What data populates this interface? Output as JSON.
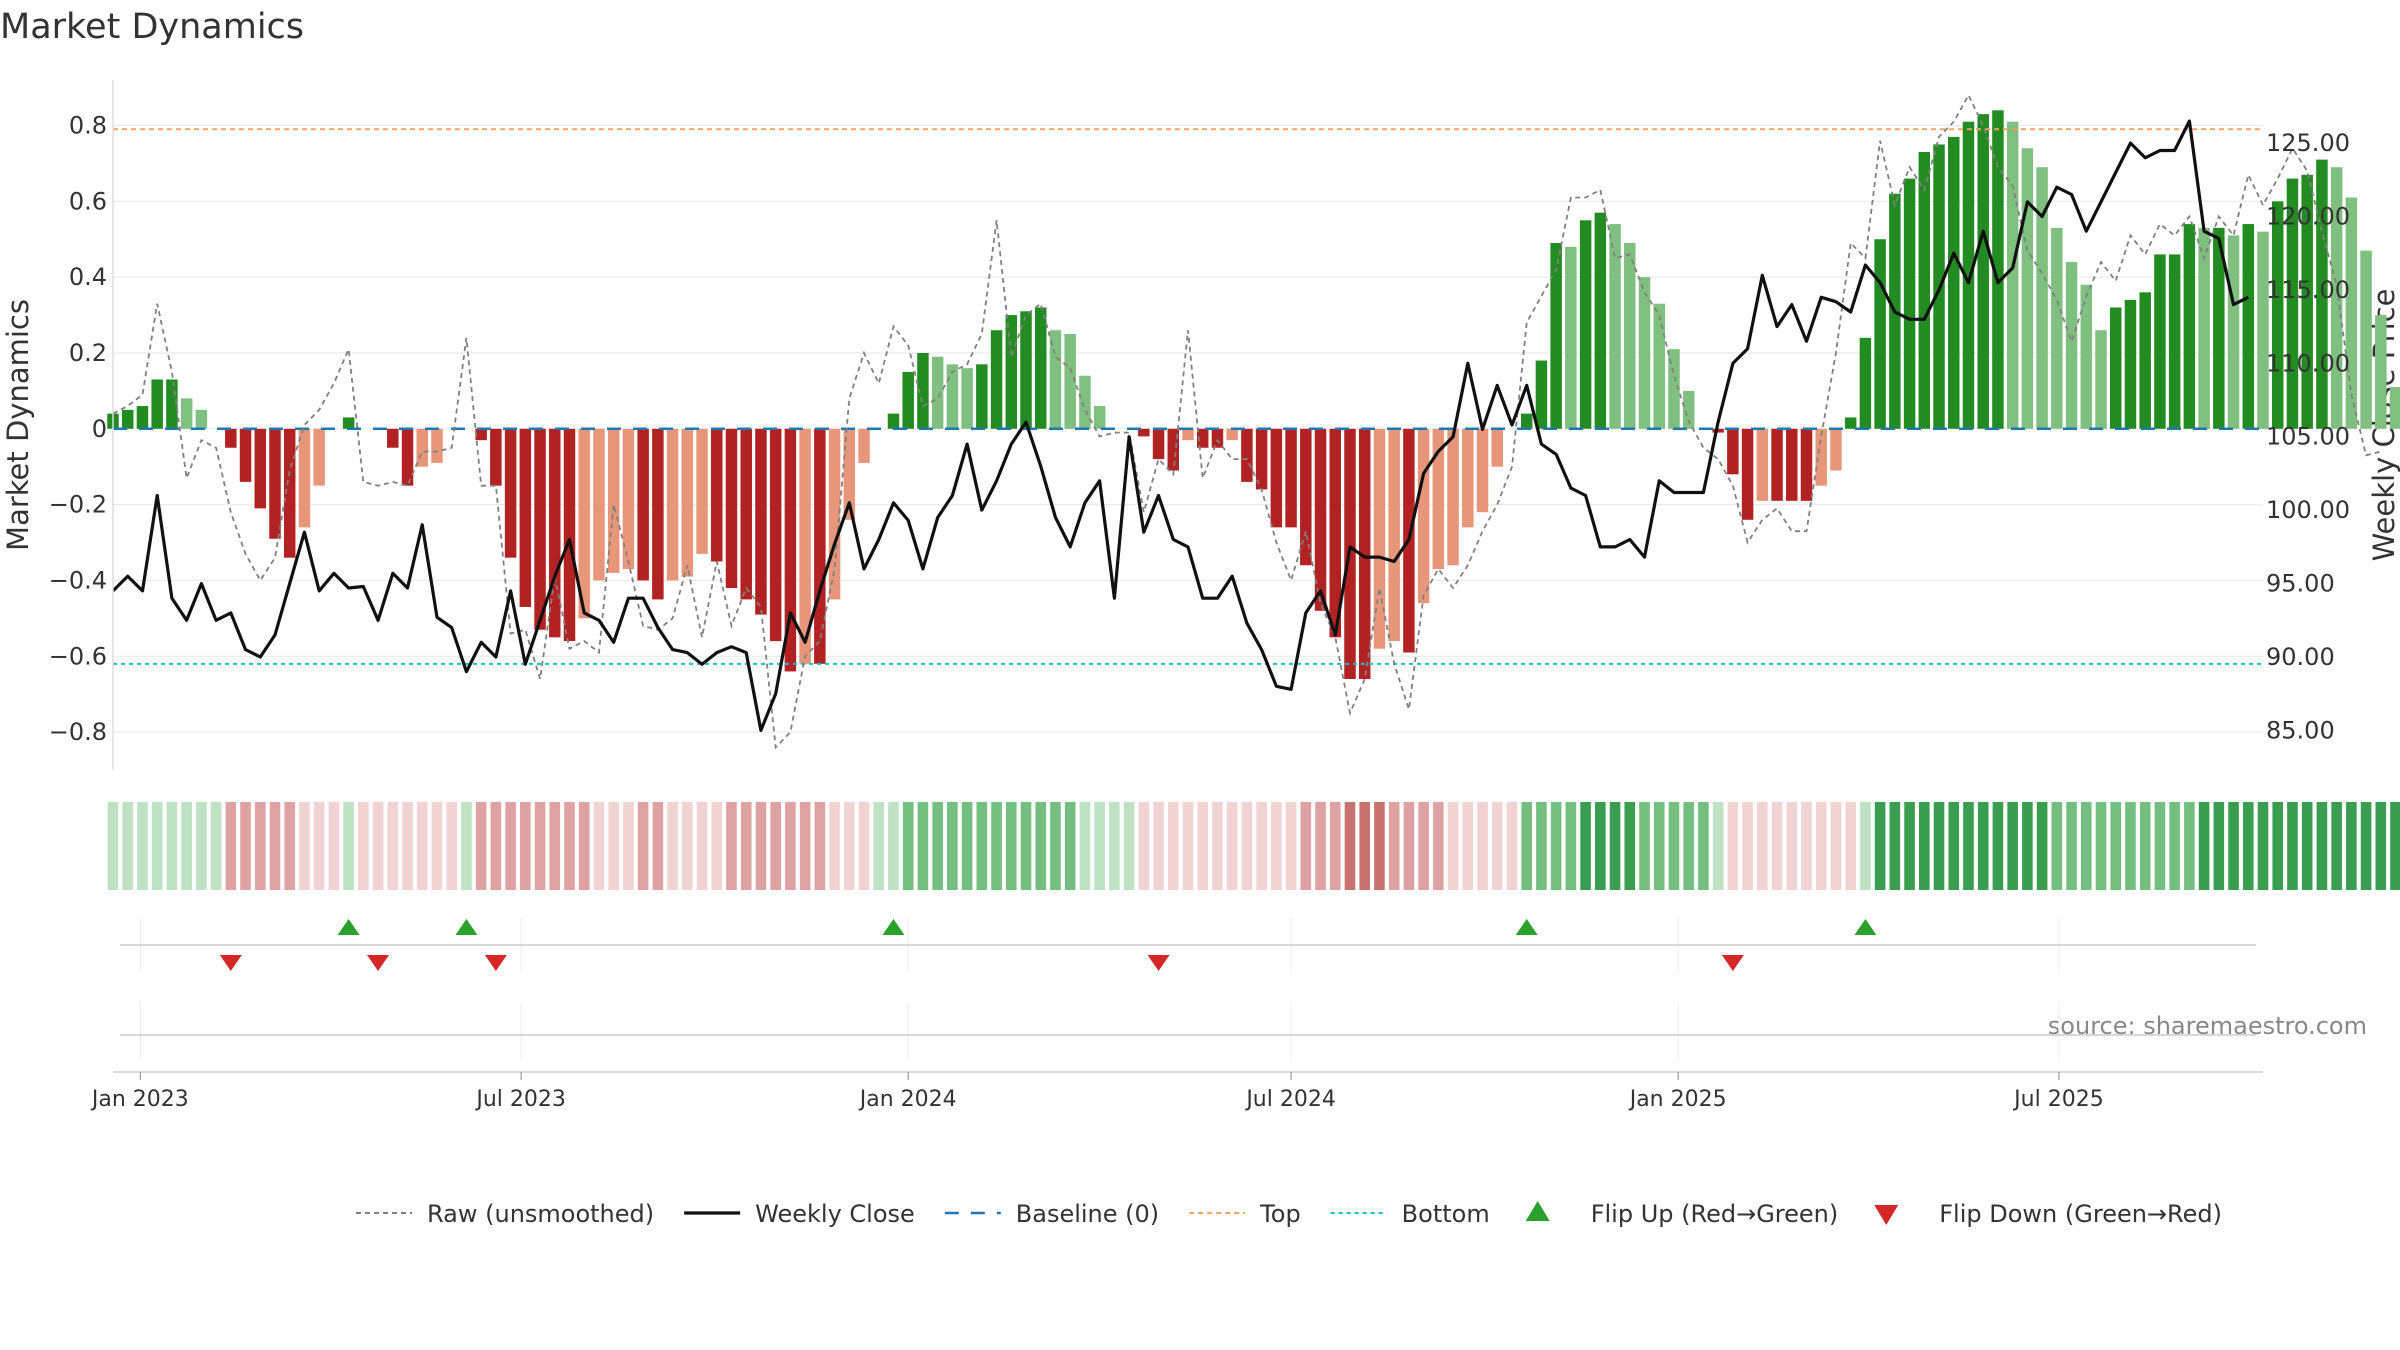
{
  "chart_data": {
    "type": "bar",
    "title": "Market Dynamics",
    "ylabel": "Market Dynamics",
    "y2label": "Weekly Close Price",
    "ylim": [
      -0.9,
      0.92
    ],
    "y2lim": [
      82.3,
      129.3
    ],
    "yticks": [
      0.8,
      0.6,
      0.4,
      0.2,
      0,
      -0.2,
      -0.4,
      -0.6,
      -0.8
    ],
    "ytick_labels": [
      "0.8",
      "0.6",
      "0.4",
      "0.2",
      "0",
      "−0.2",
      "−0.4",
      "−0.6",
      "−0.8"
    ],
    "y2ticks": [
      125,
      120,
      115,
      110,
      105,
      100,
      95,
      90,
      85
    ],
    "y2tick_labels": [
      "125.00",
      "120.00",
      "115.00",
      "110.00",
      "105.00",
      "100.00",
      "95.00",
      "90.00",
      "85.00"
    ],
    "xlim": [
      "2022-12-19",
      "2025-10-06"
    ],
    "xticks": [
      "2023-01-01",
      "2023-07-01",
      "2024-01-01",
      "2024-07-01",
      "2025-01-01",
      "2025-07-01"
    ],
    "xtick_labels": [
      "Jan 2023",
      "Jul 2023",
      "Jan 2024",
      "Jul 2024",
      "Jan 2025",
      "Jul 2025"
    ],
    "top_level": 0.79,
    "bottom_level": -0.62,
    "baseline": 0,
    "first_week": "2022-12-19",
    "bars": [
      0.04,
      0.05,
      0.06,
      0.13,
      0.13,
      0.08,
      0.05,
      0.0,
      -0.05,
      -0.14,
      -0.21,
      -0.29,
      -0.34,
      -0.26,
      -0.15,
      0.0,
      0.03,
      0.0,
      0.0,
      -0.05,
      -0.15,
      -0.1,
      -0.09,
      0.0,
      0.0,
      -0.03,
      -0.15,
      -0.34,
      -0.47,
      -0.53,
      -0.55,
      -0.56,
      -0.5,
      -0.4,
      -0.38,
      -0.37,
      -0.4,
      -0.45,
      -0.4,
      -0.39,
      -0.33,
      -0.35,
      -0.42,
      -0.45,
      -0.49,
      -0.56,
      -0.64,
      -0.62,
      -0.62,
      -0.45,
      -0.24,
      -0.09,
      0.0,
      0.04,
      0.15,
      0.2,
      0.19,
      0.17,
      0.16,
      0.17,
      0.26,
      0.3,
      0.31,
      0.32,
      0.26,
      0.25,
      0.14,
      0.06,
      0.0,
      0.0,
      -0.02,
      -0.08,
      -0.11,
      -0.03,
      -0.05,
      -0.05,
      -0.03,
      -0.14,
      -0.16,
      -0.26,
      -0.26,
      -0.36,
      -0.48,
      -0.55,
      -0.66,
      -0.66,
      -0.58,
      -0.56,
      -0.59,
      -0.46,
      -0.37,
      -0.36,
      -0.26,
      -0.22,
      -0.1,
      0.0,
      0.04,
      0.18,
      0.49,
      0.48,
      0.55,
      0.57,
      0.54,
      0.49,
      0.4,
      0.33,
      0.21,
      0.1,
      0.0,
      -0.01,
      -0.12,
      -0.24,
      -0.19,
      -0.19,
      -0.19,
      -0.19,
      -0.15,
      -0.11,
      0.03,
      0.24,
      0.5,
      0.62,
      0.66,
      0.73,
      0.75,
      0.77,
      0.81,
      0.83,
      0.84,
      0.81,
      0.74,
      0.69,
      0.53,
      0.44,
      0.38,
      0.26,
      0.32,
      0.34,
      0.36,
      0.46,
      0.46,
      0.54,
      0.53,
      0.53,
      0.51,
      0.54,
      0.52,
      0.6,
      0.66,
      0.67,
      0.71,
      0.69,
      0.61,
      0.47,
      0.3,
      0.11
    ],
    "raw": [
      0.04,
      0.06,
      0.09,
      0.33,
      0.15,
      -0.13,
      -0.03,
      -0.05,
      -0.22,
      -0.33,
      -0.4,
      -0.34,
      -0.11,
      0.01,
      0.05,
      0.12,
      0.21,
      -0.14,
      -0.15,
      -0.14,
      -0.15,
      -0.06,
      -0.06,
      -0.05,
      0.24,
      -0.15,
      -0.15,
      -0.54,
      -0.53,
      -0.66,
      -0.39,
      -0.58,
      -0.56,
      -0.59,
      -0.2,
      -0.35,
      -0.52,
      -0.53,
      -0.5,
      -0.36,
      -0.55,
      -0.35,
      -0.52,
      -0.42,
      -0.47,
      -0.84,
      -0.8,
      -0.6,
      -0.56,
      -0.37,
      0.08,
      0.2,
      0.12,
      0.27,
      0.22,
      0.06,
      0.08,
      0.15,
      0.17,
      0.25,
      0.55,
      0.19,
      0.3,
      0.33,
      0.19,
      0.16,
      0.05,
      -0.02,
      -0.01,
      -0.01,
      -0.22,
      -0.08,
      -0.12,
      0.26,
      -0.13,
      -0.03,
      -0.08,
      -0.08,
      -0.16,
      -0.3,
      -0.4,
      -0.27,
      -0.46,
      -0.55,
      -0.75,
      -0.66,
      -0.42,
      -0.62,
      -0.74,
      -0.44,
      -0.37,
      -0.42,
      -0.36,
      -0.27,
      -0.2,
      -0.1,
      0.28,
      0.35,
      0.42,
      0.61,
      0.61,
      0.63,
      0.45,
      0.46,
      0.36,
      0.3,
      0.14,
      0.02,
      -0.05,
      -0.08,
      -0.15,
      -0.3,
      -0.24,
      -0.21,
      -0.27,
      -0.27,
      -0.02,
      0.2,
      0.49,
      0.45,
      0.76,
      0.59,
      0.69,
      0.63,
      0.77,
      0.81,
      0.88,
      0.8,
      0.69,
      0.64,
      0.47,
      0.41,
      0.34,
      0.23,
      0.35,
      0.44,
      0.39,
      0.51,
      0.46,
      0.54,
      0.51,
      0.56,
      0.45,
      0.56,
      0.51,
      0.67,
      0.59,
      0.66,
      0.74,
      0.68,
      0.52,
      0.38,
      0.09,
      -0.07,
      -0.06
    ],
    "close": [
      94.5,
      95.5,
      94.5,
      101.0,
      94.0,
      92.5,
      95.0,
      92.5,
      93.0,
      90.5,
      90.0,
      91.5,
      95.0,
      98.5,
      94.5,
      95.7,
      94.7,
      94.8,
      92.5,
      95.7,
      94.7,
      99.0,
      92.7,
      92.0,
      89.0,
      91.0,
      90.0,
      94.5,
      89.5,
      92.5,
      95.5,
      98.0,
      93.0,
      92.5,
      91.0,
      94.0,
      94.0,
      92.0,
      90.5,
      90.3,
      89.5,
      90.3,
      90.7,
      90.3,
      85.0,
      87.5,
      93.0,
      91.0,
      94.5,
      97.7,
      100.5,
      96.0,
      98.0,
      100.5,
      99.3,
      96.0,
      99.5,
      101.0,
      104.5,
      100.0,
      102.0,
      104.5,
      106.0,
      103.0,
      99.5,
      97.5,
      100.5,
      102.0,
      94.0,
      105.0,
      98.5,
      101.0,
      98.0,
      97.5,
      94.0,
      94.0,
      95.5,
      92.3,
      90.5,
      88.0,
      87.8,
      93.0,
      94.5,
      91.5,
      97.5,
      96.8,
      96.8,
      96.5,
      98.0,
      102.5,
      104.0,
      105.0,
      110.0,
      105.5,
      108.5,
      105.8,
      108.5,
      104.5,
      103.8,
      101.5,
      101.0,
      97.5,
      97.5,
      98.0,
      96.8,
      102.0,
      101.2,
      101.2,
      101.2,
      106.0,
      110.0,
      111.0,
      116.0,
      112.5,
      114.0,
      111.5,
      114.5,
      114.2,
      113.5,
      116.7,
      115.5,
      113.5,
      113.0,
      113.0,
      115.0,
      117.5,
      115.5,
      119.0,
      115.5,
      116.5,
      121.0,
      120.0,
      122.0,
      121.5,
      119.0,
      121.0,
      123.0,
      125.0,
      124.0,
      124.5,
      124.5,
      126.5,
      119.0,
      118.5,
      114.0,
      114.5
    ],
    "regime": [
      1,
      1,
      1,
      1,
      1,
      1,
      1,
      1,
      -2,
      -2,
      -2,
      -2,
      -2,
      -1,
      -1,
      -1,
      1,
      -1,
      -1,
      -1,
      -1,
      -1,
      -1,
      -1,
      1,
      -2,
      -2,
      -2,
      -2,
      -2,
      -2,
      -2,
      -2,
      -1,
      -1,
      -1,
      -2,
      -2,
      -1,
      -1,
      -1,
      -1,
      -2,
      -2,
      -2,
      -2,
      -2,
      -2,
      -2,
      -1,
      -1,
      -1,
      1,
      1,
      2,
      2,
      2,
      2,
      2,
      2,
      2,
      2,
      2,
      2,
      2,
      2,
      1,
      1,
      1,
      1,
      -1,
      -1,
      -1,
      -1,
      -1,
      -1,
      -1,
      -1,
      -1,
      -1,
      -1,
      -2,
      -2,
      -2,
      -3,
      -3,
      -3,
      -2,
      -2,
      -2,
      -2,
      -1,
      -1,
      -1,
      -1,
      -1,
      2,
      2,
      2,
      2,
      3,
      3,
      3,
      3,
      2,
      2,
      2,
      2,
      2,
      1,
      -1,
      -1,
      -1,
      -1,
      -1,
      -1,
      -1,
      -1,
      -1,
      1,
      3,
      3,
      3,
      3,
      3,
      3,
      3,
      3,
      3,
      3,
      3,
      3,
      2,
      2,
      2,
      2,
      2,
      2,
      2,
      2,
      2,
      2,
      3,
      3,
      3,
      3,
      3,
      3,
      3,
      3,
      3,
      3,
      3,
      3,
      3,
      3,
      2,
      1
    ],
    "flip_up": [
      16,
      24,
      53,
      96,
      119
    ],
    "flip_down": [
      8,
      18,
      26,
      71,
      110
    ],
    "legend": [
      {
        "label": "Raw (unsmoothed)",
        "style": "dashed-gray"
      },
      {
        "label": "Weekly Close",
        "style": "solid-black"
      },
      {
        "label": "Baseline (0)",
        "style": "dashed-blue"
      },
      {
        "label": "Top",
        "style": "dotted-orange"
      },
      {
        "label": "Bottom",
        "style": "dotted-cyan"
      },
      {
        "label": "Flip Up (Red→Green)",
        "style": "triangle-up"
      },
      {
        "label": "Flip Down (Green→Red)",
        "style": "triangle-down"
      }
    ],
    "legend_position": "bottom",
    "grid": true,
    "source": "source: sharemaestro.com"
  },
  "colors": {
    "dark_green": "#228b22",
    "light_green": "#7fbf7f",
    "dark_red": "#b22222",
    "light_red": "#e8967a",
    "raw_line": "#808080",
    "close_line": "#111111",
    "baseline": "#1f77b4",
    "top": "#f4a460",
    "bottom": "#17becf",
    "flip_up": "#2ca02c",
    "flip_down": "#d62728"
  }
}
